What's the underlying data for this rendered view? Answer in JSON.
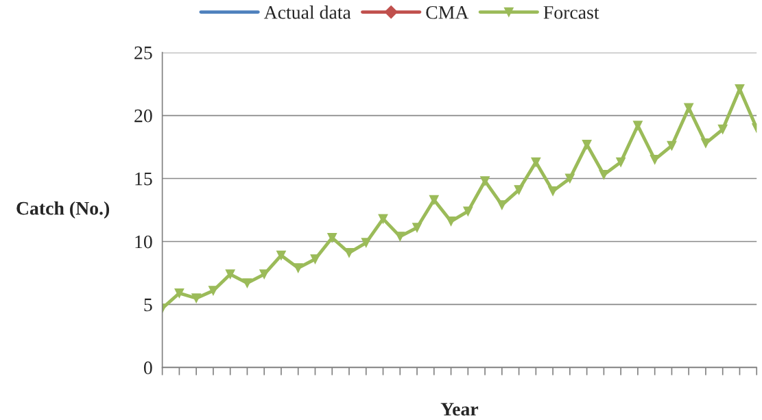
{
  "chart_data": {
    "type": "line",
    "xlabel": "Year",
    "ylabel": "Catch (No.)",
    "categories": [
      null,
      null,
      null,
      null,
      null,
      null,
      null,
      null,
      null,
      null,
      null,
      null,
      null,
      null,
      null,
      null,
      null,
      null,
      null,
      null,
      null,
      null,
      null,
      null,
      null,
      null,
      null,
      null,
      null,
      null,
      null,
      null,
      null,
      null,
      null,
      null
    ],
    "series": [
      {
        "name": "Actual data",
        "color": "#4f81bd",
        "marker": "none",
        "values": [
          null,
          null,
          null,
          null,
          null,
          null,
          null,
          null,
          null,
          null,
          null,
          null,
          null,
          null,
          null,
          null,
          null,
          null,
          null,
          null,
          null,
          null,
          null,
          null,
          null,
          null,
          null,
          null,
          null,
          null,
          null,
          null,
          null,
          null,
          null,
          null
        ]
      },
      {
        "name": "CMA",
        "color": "#c0504d",
        "marker": "diamond",
        "values": [
          null,
          null,
          null,
          null,
          null,
          null,
          null,
          null,
          null,
          null,
          null,
          null,
          null,
          null,
          null,
          null,
          null,
          null,
          null,
          null,
          null,
          null,
          null,
          null,
          null,
          null,
          null,
          null,
          null,
          null,
          null,
          null,
          null,
          null,
          null,
          null
        ]
      },
      {
        "name": "Forcast",
        "color": "#9bbb59",
        "marker": "triangle",
        "values": [
          4.7,
          5.9,
          5.5,
          6.1,
          7.4,
          6.7,
          7.4,
          8.9,
          7.9,
          8.6,
          10.3,
          9.1,
          9.9,
          11.8,
          10.4,
          11.1,
          13.3,
          11.6,
          12.4,
          14.8,
          12.9,
          14.1,
          16.3,
          14.0,
          15.0,
          17.7,
          15.3,
          16.3,
          19.2,
          16.5,
          17.6,
          20.6,
          17.8,
          18.9,
          22.1,
          19.0
        ]
      }
    ],
    "ylim": [
      0,
      25
    ],
    "yticks": [
      0,
      5,
      10,
      15,
      20,
      25
    ],
    "grid": "y",
    "legend": "top",
    "line_style": "solid"
  }
}
